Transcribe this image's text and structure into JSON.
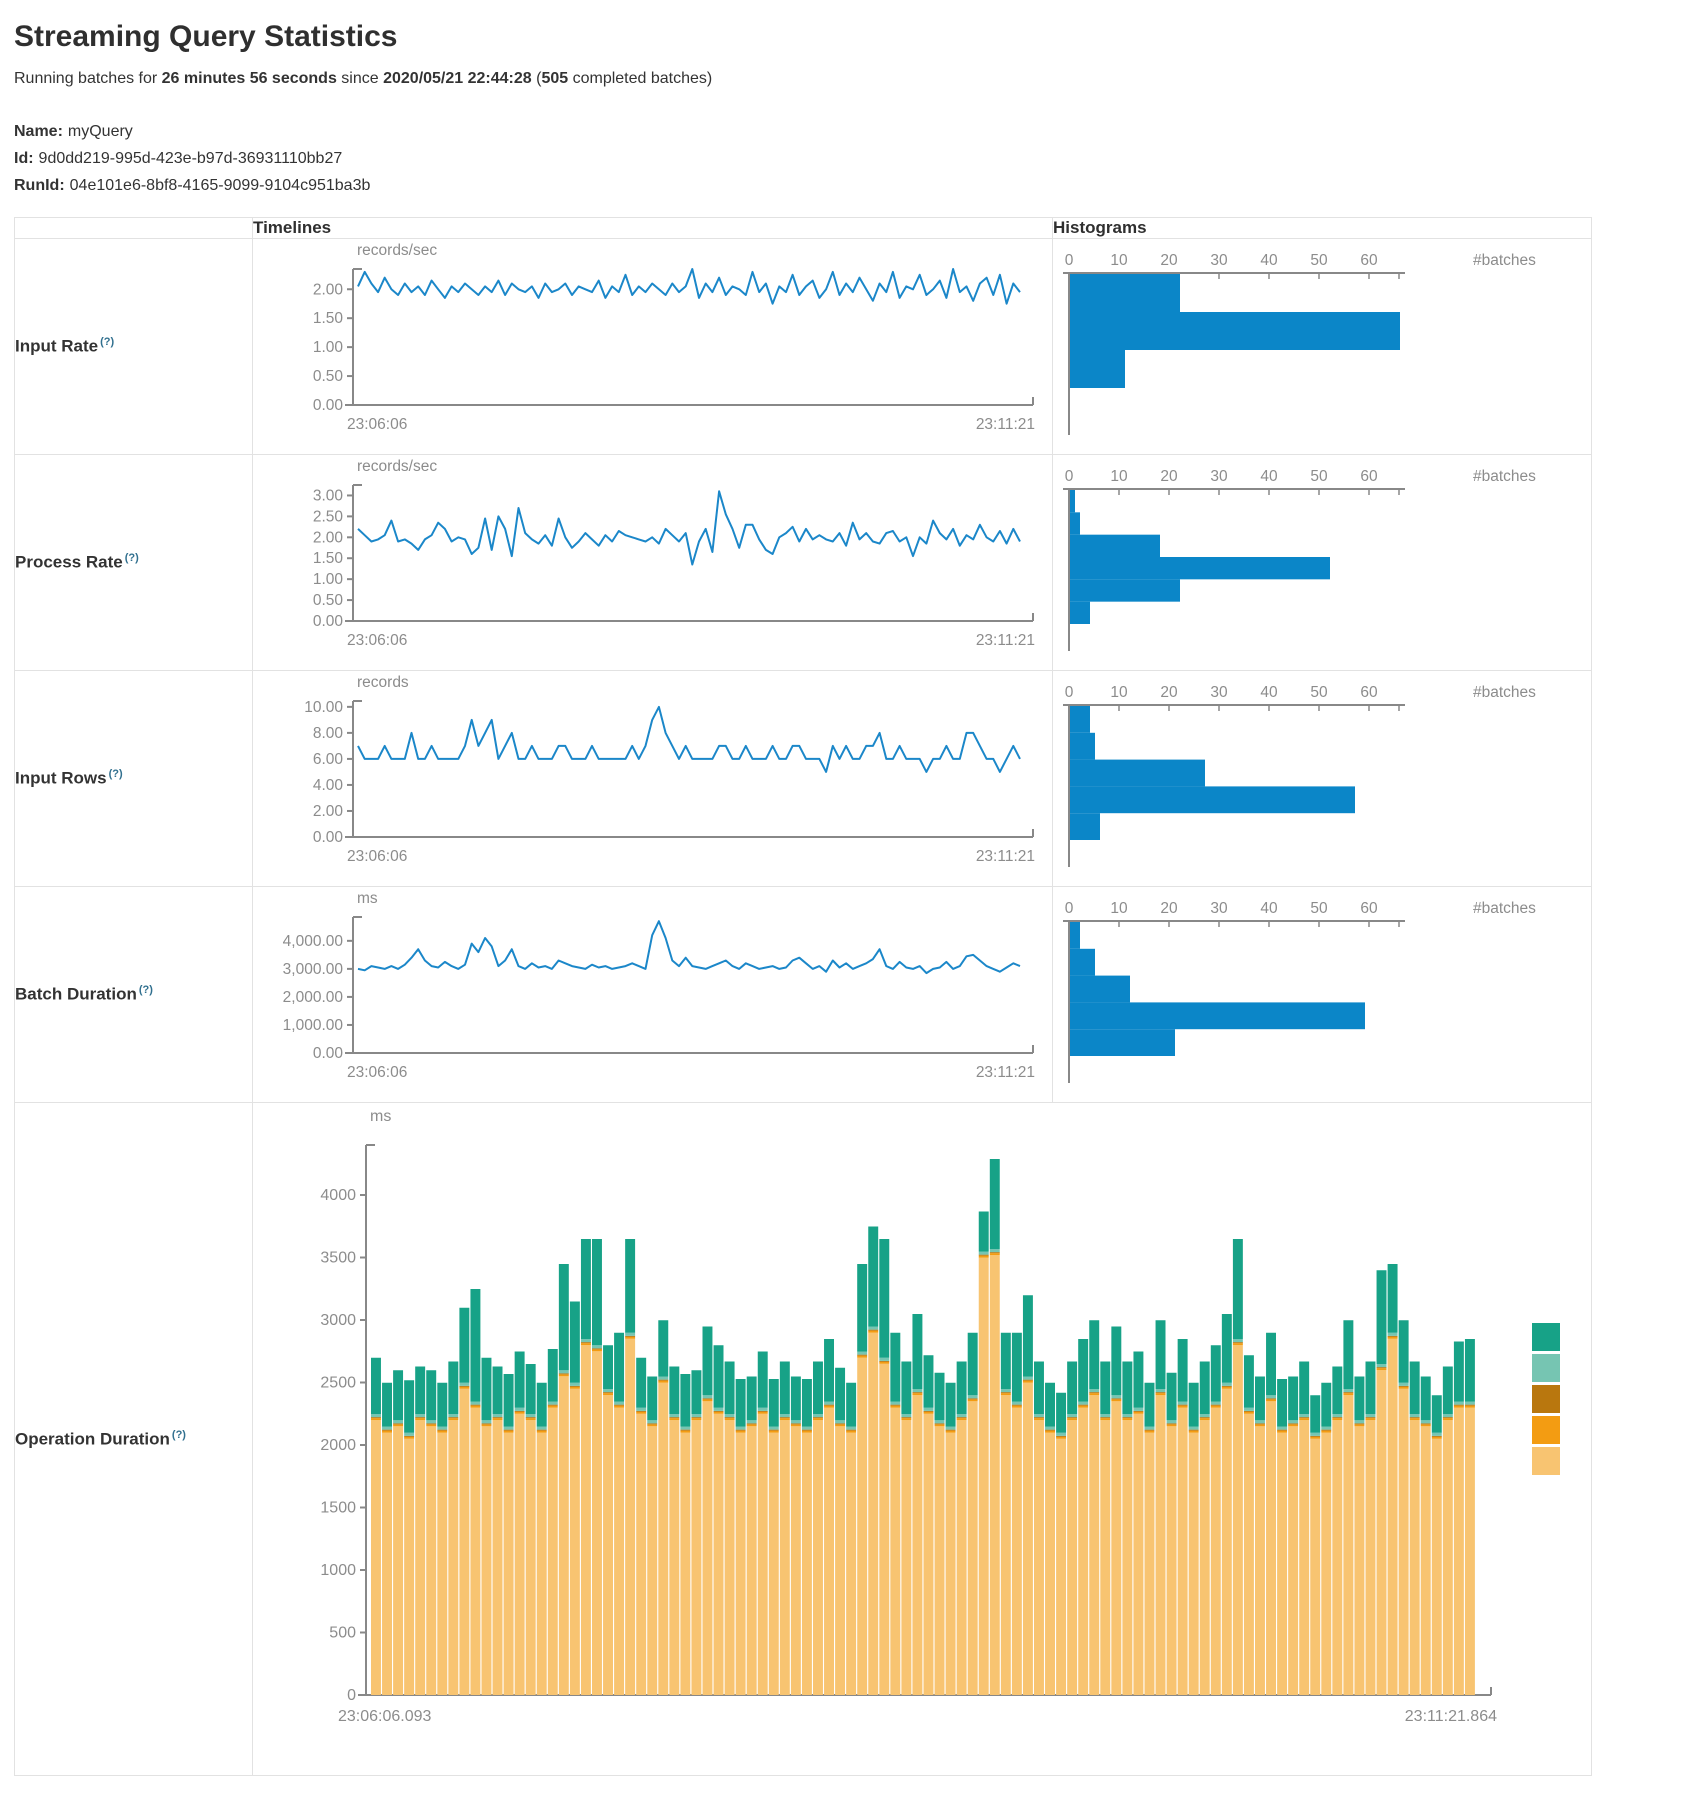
{
  "page": {
    "title": "Streaming Query Statistics",
    "subtitle": {
      "prefix": "Running batches for ",
      "duration": "26 minutes 56 seconds",
      "middle": " since ",
      "start_time": "2020/05/21 22:44:28",
      "paren": " (",
      "completed_batches": "505",
      "suffix": " completed batches)"
    },
    "query": {
      "name_label": "Name:",
      "name_value": "myQuery",
      "id_label": "Id:",
      "id_value": "9d0dd219-995d-423e-b97d-36931110bb27",
      "runid_label": "RunId:",
      "runid_value": "04e101e6-8bf8-4165-9099-9104c951ba3b"
    }
  },
  "table": {
    "headers": {
      "timelines": "Timelines",
      "histograms": "Histograms"
    },
    "rows": [
      {
        "label": "Input Rate",
        "help": "(?)"
      },
      {
        "label": "Process Rate",
        "help": "(?)"
      },
      {
        "label": "Input Rows",
        "help": "(?)"
      },
      {
        "label": "Batch Duration",
        "help": "(?)"
      },
      {
        "label": "Operation Duration",
        "help": "(?)"
      }
    ]
  },
  "colors": {
    "line": "#1b87c9",
    "bar": "#0b86c8",
    "axis": "#888888",
    "tick_text": "#8c8c8c",
    "border": "#e2e2e2"
  },
  "chart_data": [
    {
      "id": "input-rate-timeline",
      "type": "line",
      "unit": "records/sec",
      "x_start": "23:06:06",
      "x_end": "23:11:21",
      "y_tick_values": [
        0,
        0.5,
        1,
        1.5,
        2
      ],
      "y_tick_labels": [
        "0.00",
        "0.50",
        "1.00",
        "1.50",
        "2.00"
      ],
      "y_max": 2.35,
      "values": [
        2.05,
        2.3,
        2.1,
        1.95,
        2.2,
        2.0,
        1.9,
        2.1,
        1.95,
        2.05,
        1.9,
        2.15,
        2.0,
        1.85,
        2.05,
        1.95,
        2.1,
        2.0,
        1.9,
        2.05,
        1.95,
        2.15,
        1.9,
        2.1,
        2.0,
        1.95,
        2.05,
        1.85,
        2.1,
        1.95,
        2.0,
        2.1,
        1.9,
        2.05,
        2.0,
        1.95,
        2.15,
        1.85,
        2.05,
        1.95,
        2.25,
        1.9,
        2.05,
        1.95,
        2.1,
        2.0,
        1.9,
        2.1,
        1.95,
        2.05,
        2.35,
        1.85,
        2.1,
        1.95,
        2.2,
        1.9,
        2.05,
        2.0,
        1.9,
        2.3,
        1.95,
        2.1,
        1.75,
        2.05,
        1.95,
        2.25,
        1.9,
        2.05,
        2.15,
        1.85,
        2.0,
        2.3,
        1.9,
        2.1,
        1.95,
        2.2,
        2.0,
        1.8,
        2.1,
        1.95,
        2.3,
        1.85,
        2.05,
        2.0,
        2.25,
        1.9,
        2.0,
        2.15,
        1.85,
        2.35,
        1.95,
        2.05,
        1.8,
        2.1,
        2.2,
        1.9,
        2.25,
        1.75,
        2.1,
        1.95
      ]
    },
    {
      "id": "input-rate-histogram",
      "type": "bar",
      "orientation": "horizontal",
      "count_label": "#batches",
      "x_tick_values": [
        0,
        10,
        20,
        30,
        40,
        50,
        60
      ],
      "x_tick_labels": [
        "0",
        "10",
        "20",
        "30",
        "40",
        "50",
        "60"
      ],
      "x_max": 66,
      "values": [
        22,
        66,
        11
      ]
    },
    {
      "id": "process-rate-timeline",
      "type": "line",
      "unit": "records/sec",
      "x_start": "23:06:06",
      "x_end": "23:11:21",
      "y_tick_values": [
        0,
        0.5,
        1,
        1.5,
        2,
        2.5,
        3
      ],
      "y_tick_labels": [
        "0.00",
        "0.50",
        "1.00",
        "1.50",
        "2.00",
        "2.50",
        "3.00"
      ],
      "y_max": 3.25,
      "values": [
        2.2,
        2.05,
        1.9,
        1.95,
        2.05,
        2.4,
        1.9,
        1.95,
        1.85,
        1.7,
        1.95,
        2.05,
        2.35,
        2.2,
        1.9,
        2.0,
        1.95,
        1.6,
        1.75,
        2.45,
        1.7,
        2.5,
        2.2,
        1.55,
        2.7,
        2.1,
        1.95,
        1.85,
        2.05,
        1.8,
        2.45,
        2.0,
        1.75,
        1.9,
        2.1,
        1.95,
        1.8,
        2.05,
        1.9,
        2.15,
        2.05,
        2.0,
        1.95,
        1.9,
        2.0,
        1.85,
        2.2,
        2.05,
        1.9,
        2.1,
        1.35,
        1.9,
        2.2,
        1.65,
        3.1,
        2.55,
        2.2,
        1.75,
        2.3,
        2.3,
        1.95,
        1.7,
        1.6,
        2.0,
        2.1,
        2.25,
        1.9,
        2.2,
        1.95,
        2.05,
        1.95,
        1.9,
        2.1,
        1.8,
        2.35,
        1.95,
        2.1,
        1.9,
        1.85,
        2.1,
        2.15,
        1.9,
        2.0,
        1.55,
        2.0,
        1.85,
        2.4,
        2.1,
        1.95,
        2.2,
        1.8,
        2.05,
        1.95,
        2.3,
        2.0,
        1.9,
        2.15,
        1.85,
        2.2,
        1.9
      ]
    },
    {
      "id": "process-rate-histogram",
      "type": "bar",
      "orientation": "horizontal",
      "count_label": "#batches",
      "x_tick_values": [
        0,
        10,
        20,
        30,
        40,
        50,
        60
      ],
      "x_tick_labels": [
        "0",
        "10",
        "20",
        "30",
        "40",
        "50",
        "60"
      ],
      "x_max": 66,
      "values": [
        1,
        2,
        18,
        52,
        22,
        4
      ]
    },
    {
      "id": "input-rows-timeline",
      "type": "line",
      "unit": "records",
      "x_start": "23:06:06",
      "x_end": "23:11:21",
      "y_tick_values": [
        0,
        2,
        4,
        6,
        8,
        10
      ],
      "y_tick_labels": [
        "0.00",
        "2.00",
        "4.00",
        "6.00",
        "8.00",
        "10.00"
      ],
      "y_max": 10.45,
      "values": [
        7,
        6,
        6,
        6,
        7,
        6,
        6,
        6,
        8,
        6,
        6,
        7,
        6,
        6,
        6,
        6,
        7,
        9,
        7,
        8,
        9,
        6,
        7,
        8,
        6,
        6,
        7,
        6,
        6,
        6,
        7,
        7,
        6,
        6,
        6,
        7,
        6,
        6,
        6,
        6,
        6,
        7,
        6,
        7,
        9,
        10,
        8,
        7,
        6,
        7,
        6,
        6,
        6,
        6,
        7,
        7,
        6,
        6,
        7,
        6,
        6,
        6,
        7,
        6,
        6,
        7,
        7,
        6,
        6,
        6,
        5,
        7,
        6,
        7,
        6,
        6,
        7,
        7,
        8,
        6,
        6,
        7,
        6,
        6,
        6,
        5,
        6,
        6,
        7,
        6,
        6,
        8,
        8,
        7,
        6,
        6,
        5,
        6,
        7,
        6
      ]
    },
    {
      "id": "input-rows-histogram",
      "type": "bar",
      "orientation": "horizontal",
      "count_label": "#batches",
      "x_tick_values": [
        0,
        10,
        20,
        30,
        40,
        50,
        60
      ],
      "x_tick_labels": [
        "0",
        "10",
        "20",
        "30",
        "40",
        "50",
        "60"
      ],
      "x_max": 66,
      "values": [
        4,
        5,
        27,
        57,
        6
      ]
    },
    {
      "id": "batch-duration-timeline",
      "type": "line",
      "unit": "ms",
      "x_start": "23:06:06",
      "x_end": "23:11:21",
      "y_tick_values": [
        0,
        1000,
        2000,
        3000,
        4000
      ],
      "y_tick_labels": [
        "0.00",
        "1,000.00",
        "2,000.00",
        "3,000.00",
        "4,000.00"
      ],
      "y_max": 4850,
      "values": [
        3000,
        2950,
        3100,
        3050,
        3000,
        3100,
        3000,
        3150,
        3400,
        3700,
        3300,
        3100,
        3050,
        3250,
        3100,
        3000,
        3150,
        3900,
        3600,
        4100,
        3800,
        3100,
        3300,
        3700,
        3100,
        3000,
        3200,
        3050,
        3100,
        3000,
        3300,
        3200,
        3100,
        3050,
        3000,
        3150,
        3050,
        3100,
        3000,
        3050,
        3100,
        3200,
        3100,
        3000,
        4200,
        4700,
        4100,
        3300,
        3100,
        3400,
        3100,
        3050,
        3000,
        3100,
        3200,
        3300,
        3100,
        3000,
        3200,
        3100,
        3000,
        3050,
        3100,
        3000,
        3050,
        3300,
        3400,
        3200,
        3000,
        3100,
        2900,
        3300,
        3050,
        3200,
        3000,
        3100,
        3200,
        3350,
        3700,
        3100,
        3000,
        3250,
        3050,
        3000,
        3100,
        2850,
        3000,
        3050,
        3250,
        3000,
        3100,
        3450,
        3500,
        3300,
        3100,
        3000,
        2900,
        3050,
        3200,
        3100
      ]
    },
    {
      "id": "batch-duration-histogram",
      "type": "bar",
      "orientation": "horizontal",
      "count_label": "#batches",
      "x_tick_values": [
        0,
        10,
        20,
        30,
        40,
        50,
        60
      ],
      "x_tick_labels": [
        "0",
        "10",
        "20",
        "30",
        "40",
        "50",
        "60"
      ],
      "x_max": 66,
      "values": [
        2,
        5,
        12,
        59,
        21
      ]
    },
    {
      "id": "operation-duration-stacked",
      "type": "stacked-bar",
      "unit": "ms",
      "x_start": "23:06:06.093",
      "x_end": "23:11:21.864",
      "y_tick_values": [
        0,
        500,
        1000,
        1500,
        2000,
        2500,
        3000,
        3500,
        4000
      ],
      "y_tick_labels": [
        "0",
        "500",
        "1000",
        "1500",
        "2000",
        "2500",
        "3000",
        "3500",
        "4000"
      ],
      "y_max": 4400,
      "legend_colors_top_to_bottom": [
        "#17A287",
        "#76C5B2",
        "#B9770E",
        "#F39C12",
        "#F8C471"
      ],
      "series": [
        {
          "name": "light-orange",
          "color": "#F8C471",
          "values": [
            2200,
            2100,
            2150,
            2050,
            2200,
            2150,
            2100,
            2200,
            2450,
            2300,
            2150,
            2200,
            2100,
            2250,
            2200,
            2100,
            2300,
            2550,
            2450,
            2800,
            2750,
            2400,
            2300,
            2850,
            2250,
            2150,
            2500,
            2200,
            2100,
            2200,
            2350,
            2250,
            2200,
            2100,
            2150,
            2250,
            2100,
            2200,
            2150,
            2100,
            2200,
            2300,
            2150,
            2100,
            2700,
            2900,
            2650,
            2300,
            2200,
            2400,
            2250,
            2150,
            2100,
            2200,
            2350,
            3500,
            3520,
            2400,
            2300,
            2500,
            2200,
            2100,
            2050,
            2200,
            2300,
            2400,
            2200,
            2350,
            2200,
            2250,
            2100,
            2400,
            2150,
            2300,
            2100,
            2200,
            2300,
            2450,
            2800,
            2250,
            2150,
            2350,
            2100,
            2150,
            2200,
            2050,
            2100,
            2200,
            2400,
            2150,
            2200,
            2600,
            2850,
            2450,
            2200,
            2150,
            2050,
            2200,
            2300,
            2300
          ]
        },
        {
          "name": "orange",
          "color": "#F39C12",
          "constant": 15
        },
        {
          "name": "dark-gold",
          "color": "#B9770E",
          "constant": 8
        },
        {
          "name": "light-teal",
          "color": "#76C5B2",
          "constant": 25
        },
        {
          "name": "teal",
          "color": "#17A287",
          "values": [
            450,
            350,
            400,
            420,
            380,
            400,
            350,
            420,
            600,
            900,
            500,
            380,
            420,
            450,
            400,
            350,
            420,
            850,
            650,
            800,
            850,
            350,
            550,
            750,
            400,
            350,
            450,
            380,
            420,
            350,
            550,
            500,
            420,
            380,
            350,
            450,
            380,
            420,
            350,
            380,
            420,
            500,
            420,
            350,
            700,
            800,
            950,
            550,
            420,
            600,
            420,
            380,
            350,
            420,
            500,
            320,
            720,
            450,
            550,
            650,
            420,
            350,
            320,
            420,
            500,
            550,
            420,
            550,
            420,
            450,
            350,
            550,
            380,
            500,
            350,
            420,
            450,
            550,
            800,
            420,
            350,
            500,
            380,
            350,
            420,
            300,
            350,
            380,
            550,
            350,
            420,
            750,
            550,
            500,
            420,
            350,
            300,
            380,
            480,
            500
          ]
        }
      ]
    }
  ]
}
